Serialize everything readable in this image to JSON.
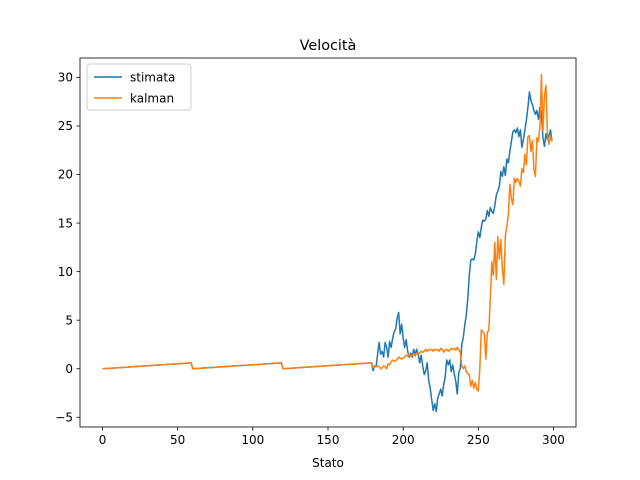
{
  "chart_data": {
    "type": "line",
    "title": "Velocità",
    "xlabel": "Stato",
    "ylabel": "",
    "xlim": [
      -15,
      315
    ],
    "ylim": [
      -6,
      32
    ],
    "xticks": [
      0,
      50,
      100,
      150,
      200,
      250,
      300
    ],
    "yticks": [
      -5,
      0,
      5,
      10,
      15,
      20,
      25,
      30
    ],
    "grid": false,
    "legend_position": "top-left",
    "series": [
      {
        "name": "stimata",
        "color": "#1f77b4",
        "points": [
          [
            0,
            0
          ],
          [
            59,
            0.6
          ],
          [
            60,
            0
          ],
          [
            119,
            0.6
          ],
          [
            120,
            0
          ],
          [
            179,
            0.6
          ],
          [
            180,
            -0.2
          ],
          [
            181,
            0.3
          ],
          [
            182,
            0.2
          ],
          [
            183,
            1.5
          ],
          [
            184,
            2.7
          ],
          [
            185,
            1.5
          ],
          [
            186,
            1.8
          ],
          [
            187,
            1.2
          ],
          [
            188,
            2.7
          ],
          [
            189,
            2.2
          ],
          [
            190,
            1.2
          ],
          [
            191,
            2.8
          ],
          [
            192,
            2.2
          ],
          [
            193,
            3.1
          ],
          [
            194,
            3.8
          ],
          [
            195,
            4.1
          ],
          [
            196,
            5.2
          ],
          [
            197,
            5.8
          ],
          [
            198,
            3.6
          ],
          [
            199,
            4.6
          ],
          [
            200,
            3.2
          ],
          [
            201,
            2.2
          ],
          [
            202,
            3.0
          ],
          [
            203,
            1.8
          ],
          [
            204,
            1.2
          ],
          [
            205,
            1.6
          ],
          [
            206,
            1.2
          ],
          [
            207,
            2.0
          ],
          [
            208,
            1.5
          ],
          [
            209,
            2.0
          ],
          [
            210,
            1.5
          ],
          [
            211,
            0.6
          ],
          [
            212,
            1.4
          ],
          [
            213,
            0.3
          ],
          [
            214,
            -0.6
          ],
          [
            215,
            -0.2
          ],
          [
            216,
            0.6
          ],
          [
            217,
            -1.2
          ],
          [
            218,
            -2.0
          ],
          [
            219,
            -3.2
          ],
          [
            220,
            -4.3
          ],
          [
            221,
            -3.6
          ],
          [
            222,
            -4.4
          ],
          [
            223,
            -3.0
          ],
          [
            224,
            -2.6
          ],
          [
            225,
            -2.1
          ],
          [
            226,
            -2.8
          ],
          [
            227,
            -1.6
          ],
          [
            228,
            -0.8
          ],
          [
            229,
            0.9
          ],
          [
            230,
            0.4
          ],
          [
            231,
            0.9
          ],
          [
            232,
            -0.3
          ],
          [
            233,
            0.4
          ],
          [
            234,
            -0.5
          ],
          [
            235,
            -1.3
          ],
          [
            236,
            -2.6
          ],
          [
            237,
            -0.4
          ],
          [
            238,
            0.0
          ],
          [
            239,
            2.5
          ],
          [
            240,
            3.2
          ],
          [
            241,
            4.5
          ],
          [
            242,
            5.5
          ],
          [
            243,
            7.2
          ],
          [
            244,
            9.6
          ],
          [
            245,
            11.2
          ],
          [
            246,
            11.3
          ],
          [
            247,
            11.2
          ],
          [
            248,
            11.8
          ],
          [
            249,
            13.1
          ],
          [
            250,
            14.1
          ],
          [
            251,
            13.5
          ],
          [
            252,
            14.6
          ],
          [
            253,
            15.3
          ],
          [
            254,
            15.2
          ],
          [
            255,
            15.4
          ],
          [
            256,
            16.3
          ],
          [
            257,
            15.7
          ],
          [
            258,
            16.6
          ],
          [
            259,
            16.2
          ],
          [
            260,
            16.0
          ],
          [
            261,
            16.8
          ],
          [
            262,
            17.9
          ],
          [
            263,
            18.3
          ],
          [
            264,
            18.8
          ],
          [
            265,
            20.3
          ],
          [
            266,
            19.8
          ],
          [
            267,
            20.8
          ],
          [
            268,
            19.9
          ],
          [
            269,
            21.6
          ],
          [
            270,
            21.2
          ],
          [
            271,
            22.4
          ],
          [
            272,
            23.4
          ],
          [
            273,
            24.4
          ],
          [
            274,
            24.6
          ],
          [
            275,
            24.3
          ],
          [
            276,
            24.8
          ],
          [
            277,
            23.9
          ],
          [
            278,
            24.6
          ],
          [
            279,
            22.8
          ],
          [
            280,
            23.6
          ],
          [
            281,
            24.6
          ],
          [
            282,
            25.6
          ],
          [
            283,
            26.9
          ],
          [
            284,
            28.5
          ],
          [
            285,
            27.6
          ],
          [
            286,
            27.2
          ],
          [
            287,
            26.6
          ],
          [
            288,
            26.2
          ],
          [
            289,
            26.6
          ],
          [
            290,
            25.7
          ],
          [
            291,
            26.9
          ],
          [
            292,
            26.3
          ],
          [
            293,
            23.8
          ],
          [
            294,
            22.9
          ],
          [
            295,
            24.2
          ],
          [
            296,
            23.6
          ],
          [
            297,
            24.0
          ],
          [
            298,
            24.6
          ],
          [
            299,
            23.5
          ]
        ]
      },
      {
        "name": "kalman",
        "color": "#ff7f0e",
        "points": [
          [
            0,
            0
          ],
          [
            59,
            0.6
          ],
          [
            60,
            0
          ],
          [
            119,
            0.6
          ],
          [
            120,
            0
          ],
          [
            179,
            0.6
          ],
          [
            180,
            0.1
          ],
          [
            181,
            0.2
          ],
          [
            182,
            0.3
          ],
          [
            183,
            0.3
          ],
          [
            184,
            0.2
          ],
          [
            185,
            0.0
          ],
          [
            186,
            0.1
          ],
          [
            187,
            0.3
          ],
          [
            188,
            0.2
          ],
          [
            189,
            0.0
          ],
          [
            190,
            0.5
          ],
          [
            191,
            0.4
          ],
          [
            192,
            0.7
          ],
          [
            193,
            0.9
          ],
          [
            194,
            0.8
          ],
          [
            195,
            0.8
          ],
          [
            196,
            1.0
          ],
          [
            197,
            1.2
          ],
          [
            198,
            1.1
          ],
          [
            199,
            1.0
          ],
          [
            200,
            1.1
          ],
          [
            201,
            1.2
          ],
          [
            202,
            1.4
          ],
          [
            203,
            1.3
          ],
          [
            204,
            1.5
          ],
          [
            205,
            1.3
          ],
          [
            206,
            1.4
          ],
          [
            207,
            1.5
          ],
          [
            208,
            1.3
          ],
          [
            209,
            1.6
          ],
          [
            210,
            1.5
          ],
          [
            211,
            1.6
          ],
          [
            212,
            1.8
          ],
          [
            213,
            1.7
          ],
          [
            214,
            1.8
          ],
          [
            215,
            2.0
          ],
          [
            216,
            1.8
          ],
          [
            217,
            2.0
          ],
          [
            218,
            1.9
          ],
          [
            219,
            2.0
          ],
          [
            220,
            1.8
          ],
          [
            221,
            2.0
          ],
          [
            222,
            1.9
          ],
          [
            223,
            2.0
          ],
          [
            224,
            1.8
          ],
          [
            225,
            2.1
          ],
          [
            226,
            2.0
          ],
          [
            227,
            1.7
          ],
          [
            228,
            1.9
          ],
          [
            229,
            2.0
          ],
          [
            230,
            1.8
          ],
          [
            231,
            1.9
          ],
          [
            232,
            2.1
          ],
          [
            233,
            2.0
          ],
          [
            234,
            2.1
          ],
          [
            235,
            1.9
          ],
          [
            236,
            2.2
          ],
          [
            237,
            2.0
          ],
          [
            238,
            1.7
          ],
          [
            239,
            0.3
          ],
          [
            240,
            0.0
          ],
          [
            241,
            0.3
          ],
          [
            242,
            -0.3
          ],
          [
            243,
            -0.5
          ],
          [
            244,
            -0.6
          ],
          [
            245,
            -1.8
          ],
          [
            246,
            -1.2
          ],
          [
            247,
            -2.0
          ],
          [
            248,
            -1.4
          ],
          [
            249,
            -2.1
          ],
          [
            250,
            -2.3
          ],
          [
            251,
            0.0
          ],
          [
            252,
            4.0
          ],
          [
            253,
            3.8
          ],
          [
            254,
            3.6
          ],
          [
            255,
            1.0
          ],
          [
            256,
            3.7
          ],
          [
            257,
            4.0
          ],
          [
            258,
            7.3
          ],
          [
            259,
            11.0
          ],
          [
            260,
            9.6
          ],
          [
            261,
            13.0
          ],
          [
            262,
            9.2
          ],
          [
            263,
            13.6
          ],
          [
            264,
            11.3
          ],
          [
            265,
            13.3
          ],
          [
            266,
            10.3
          ],
          [
            267,
            8.7
          ],
          [
            268,
            13.7
          ],
          [
            269,
            14.7
          ],
          [
            270,
            15.9
          ],
          [
            271,
            19.0
          ],
          [
            272,
            17.5
          ],
          [
            273,
            16.9
          ],
          [
            274,
            19.6
          ],
          [
            275,
            19.2
          ],
          [
            276,
            19.6
          ],
          [
            277,
            19.3
          ],
          [
            278,
            18.8
          ],
          [
            279,
            20.6
          ],
          [
            280,
            20.2
          ],
          [
            281,
            22.1
          ],
          [
            282,
            21.0
          ],
          [
            283,
            23.9
          ],
          [
            284,
            24.0
          ],
          [
            285,
            22.4
          ],
          [
            286,
            23.5
          ],
          [
            287,
            20.6
          ],
          [
            288,
            19.8
          ],
          [
            289,
            23.8
          ],
          [
            290,
            23.4
          ],
          [
            291,
            24.9
          ],
          [
            292,
            30.3
          ],
          [
            293,
            24.5
          ],
          [
            294,
            28.1
          ],
          [
            295,
            29.2
          ],
          [
            296,
            24.0
          ],
          [
            297,
            23.1
          ],
          [
            298,
            24.0
          ],
          [
            299,
            23.4
          ]
        ]
      }
    ]
  }
}
